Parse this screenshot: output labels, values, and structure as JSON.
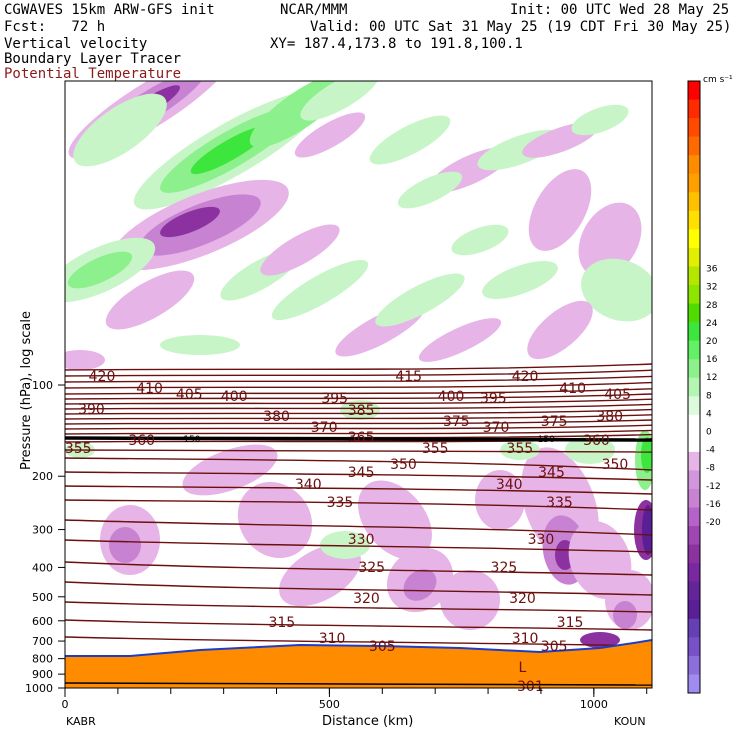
{
  "header": {
    "line1_left": "CGWAVES 15km ARW-GFS init",
    "line1_mid": "NCAR/MMM",
    "line1_right": "Init: 00 UTC Wed 28 May 25",
    "line2_left": "Fcst:   72 h",
    "line2_right": "Valid: 00 UTC Sat 31 May 25 (19 CDT Fri 30 May 25)",
    "line3_left": "Vertical velocity",
    "line3_right": "XY= 187.4,173.8 to 191.8,100.1",
    "line4_left": "Boundary Layer Tracer",
    "line5_left": "Potential Temperature"
  },
  "colors": {
    "isentrope": "#6b0f0f",
    "terrain": "#ff8c00",
    "up_light": "#c8f5c8",
    "up_mid": "#8cf08c",
    "up_strong": "#3ce63c",
    "down_light": "#e6b4e6",
    "down_mid": "#c882d2",
    "down_strong": "#8c32a0",
    "down_max": "#5a1e96"
  },
  "chart_data": {
    "type": "heatmap",
    "title": "Vertical velocity / Boundary Layer Tracer / Potential Temperature",
    "xlabel": "Distance (km)",
    "ylabel": "Pressure (hPa), log scale",
    "xlim": [
      0,
      1110
    ],
    "x_ticks": [
      0,
      500,
      1000
    ],
    "x_endpoints": {
      "left": "KABR",
      "right": "KOUN"
    },
    "y_ticks": [
      100,
      200,
      300,
      400,
      500,
      600,
      700,
      800,
      900,
      1000
    ],
    "colorbar": {
      "units": "cm s⁻¹",
      "ticks": [
        36,
        32,
        28,
        24,
        20,
        16,
        12,
        8,
        4,
        0,
        -4,
        -8,
        -12,
        -16,
        -20
      ]
    },
    "tropopause_label": "150",
    "isentrope_labels": [
      {
        "value": "420",
        "x": 70
      },
      {
        "value": "410",
        "x": 160
      },
      {
        "value": "405",
        "x": 235
      },
      {
        "value": "400",
        "x": 320
      },
      {
        "value": "390",
        "x": 50
      },
      {
        "value": "415",
        "x": 650
      },
      {
        "value": "420",
        "x": 870
      },
      {
        "value": "410",
        "x": 960
      },
      {
        "value": "405",
        "x": 1045
      },
      {
        "value": "400",
        "x": 730
      },
      {
        "value": "395",
        "x": 510
      },
      {
        "value": "395",
        "x": 810
      },
      {
        "value": "385",
        "x": 560
      },
      {
        "value": "380",
        "x": 400
      },
      {
        "value": "380",
        "x": 1030
      },
      {
        "value": "375",
        "x": 740
      },
      {
        "value": "375",
        "x": 925
      },
      {
        "value": "370",
        "x": 490
      },
      {
        "value": "370",
        "x": 815
      },
      {
        "value": "365",
        "x": 560
      },
      {
        "value": "360",
        "x": 145
      },
      {
        "value": "360",
        "x": 1005
      },
      {
        "value": "355",
        "x": 25
      },
      {
        "value": "355",
        "x": 700
      },
      {
        "value": "355",
        "x": 860
      },
      {
        "value": "350",
        "x": 640
      },
      {
        "value": "350",
        "x": 1040
      },
      {
        "value": "345",
        "x": 560
      },
      {
        "value": "345",
        "x": 920
      },
      {
        "value": "340",
        "x": 460
      },
      {
        "value": "340",
        "x": 840
      },
      {
        "value": "335",
        "x": 520
      },
      {
        "value": "335",
        "x": 935
      },
      {
        "value": "330",
        "x": 560
      },
      {
        "value": "330",
        "x": 900
      },
      {
        "value": "325",
        "x": 580
      },
      {
        "value": "325",
        "x": 830
      },
      {
        "value": "320",
        "x": 570
      },
      {
        "value": "320",
        "x": 865
      },
      {
        "value": "315",
        "x": 410
      },
      {
        "value": "315",
        "x": 955
      },
      {
        "value": "310",
        "x": 505
      },
      {
        "value": "310",
        "x": 870
      },
      {
        "value": "305",
        "x": 600
      },
      {
        "value": "305",
        "x": 925
      },
      {
        "value": "301",
        "x": 880
      }
    ],
    "low_marker": "L"
  }
}
